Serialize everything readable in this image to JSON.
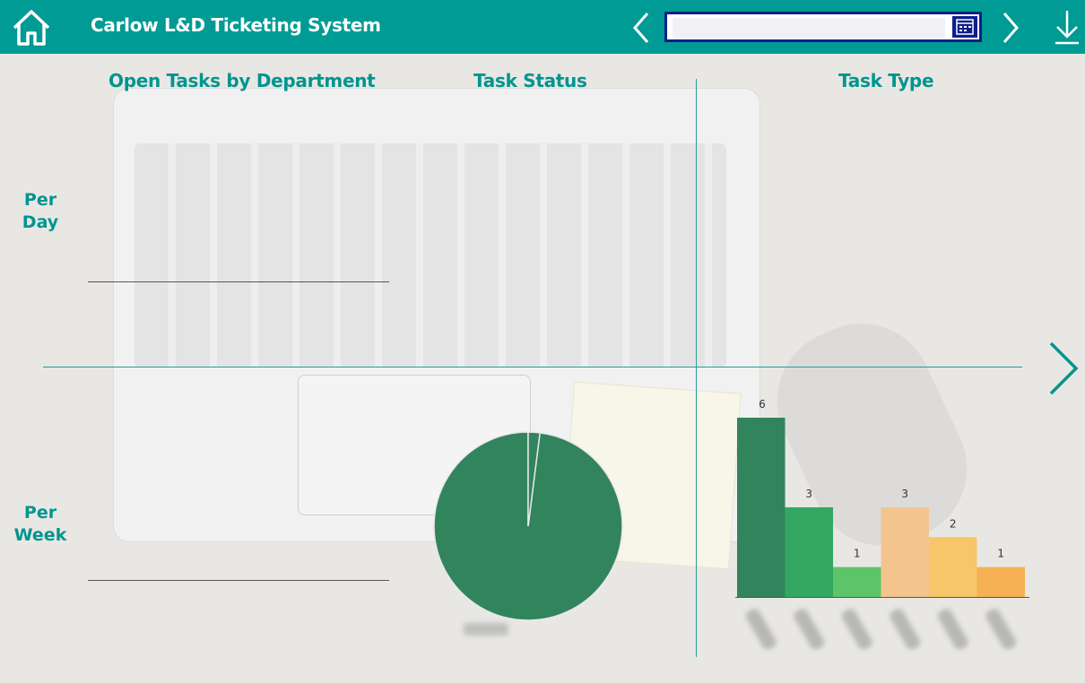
{
  "header": {
    "title": "Carlow L&D Ticketing System",
    "date_value": "",
    "date_placeholder": ""
  },
  "sections": {
    "open_tasks": "Open Tasks by Department",
    "task_status": "Task Status",
    "task_type": "Task Type"
  },
  "rows": {
    "per_day": [
      "Per",
      "Day"
    ],
    "per_week": [
      "Per",
      "Week"
    ]
  },
  "colors": {
    "header_bg": "#009b94",
    "accent": "#00958f",
    "date_border": "#0e1f8a"
  },
  "chart_data": [
    {
      "type": "pie",
      "title": "",
      "slices": [
        {
          "label": "",
          "value": 98,
          "color": "#32845c"
        },
        {
          "label": "",
          "value": 2,
          "color": "#32845c"
        }
      ]
    },
    {
      "type": "bar",
      "title": "",
      "categories": [
        "",
        "",
        "",
        "",
        "",
        ""
      ],
      "values": [
        6,
        3,
        1,
        3,
        2,
        1
      ],
      "colors": [
        "#32845c",
        "#32a862",
        "#5dc46a",
        "#f4c48e",
        "#f7c56a",
        "#f5b153"
      ],
      "ylim": [
        0,
        6
      ],
      "xlabel": "",
      "ylabel": ""
    }
  ]
}
